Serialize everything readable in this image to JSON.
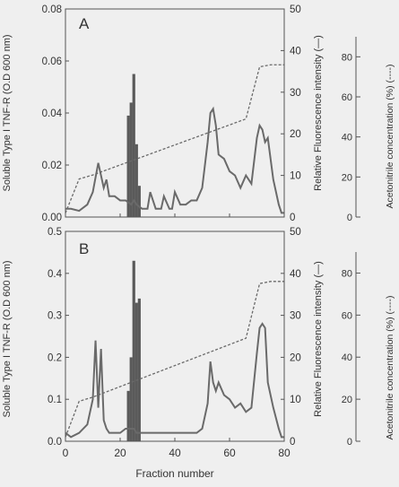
{
  "chart_data": [
    {
      "panel_label": "A",
      "type": "bar+line",
      "x_range": [
        0,
        80
      ],
      "xticks": [
        0,
        20,
        40,
        60,
        80
      ],
      "y_left": {
        "label": "Soluble Type I TNF-R (O.D 600 nm)",
        "range": [
          0,
          0.08
        ],
        "ticks": [
          "0.00",
          "0.02",
          "0.04",
          "0.06",
          "0.08"
        ]
      },
      "y_right1": {
        "label": "Relative Fluorescence intensity (—)",
        "range": [
          0,
          50
        ],
        "ticks": [
          "0",
          "10",
          "20",
          "30",
          "40",
          "50"
        ]
      },
      "y_right2": {
        "label": "Acetonitrile concentration (%) (----)",
        "range": [
          0,
          90
        ],
        "ticks": [
          "0",
          "20",
          "40",
          "60",
          "80"
        ]
      },
      "bars": {
        "x": [
          23,
          24,
          25,
          26,
          27
        ],
        "values": [
          0.039,
          0.044,
          0.055,
          0.028,
          0.012
        ]
      },
      "fluorescence": {
        "x": [
          0,
          2,
          5,
          8,
          10,
          12,
          13,
          14,
          15,
          16,
          18,
          20,
          22,
          24,
          25,
          26,
          28,
          30,
          31,
          32,
          33,
          35,
          36,
          38,
          39,
          40,
          42,
          44,
          46,
          48,
          50,
          52,
          53,
          54,
          55,
          56,
          58,
          60,
          62,
          64,
          66,
          68,
          70,
          71,
          72,
          73,
          74,
          76,
          78,
          79,
          80
        ],
        "values": [
          2,
          2,
          1.5,
          3,
          6,
          13,
          10,
          7,
          9,
          5,
          5,
          4,
          4,
          3,
          4,
          3,
          2,
          2,
          6,
          4,
          2,
          2,
          5,
          2,
          2,
          6,
          3,
          3,
          4,
          4,
          7,
          18,
          25,
          26,
          22,
          15,
          14,
          11,
          10,
          7,
          10,
          8,
          19,
          22,
          21,
          18,
          19,
          9,
          3,
          1,
          1
        ]
      },
      "acetonitrile": {
        "x": [
          0,
          5,
          10,
          66,
          71,
          75,
          80
        ],
        "values": [
          2,
          19,
          21,
          49,
          75,
          76,
          76
        ]
      }
    },
    {
      "panel_label": "B",
      "type": "bar+line",
      "x_range": [
        0,
        80
      ],
      "xticks": [
        0,
        20,
        40,
        60,
        80
      ],
      "xlabel": "Fraction number",
      "y_left": {
        "label": "Soluble Type I TNF-R (O.D 600 nm)",
        "range": [
          0,
          0.5
        ],
        "ticks": [
          "0.0",
          "0.1",
          "0.2",
          "0.3",
          "0.4",
          "0.5"
        ]
      },
      "y_right1": {
        "label": "Relative Fluorescence intensity (—)",
        "range": [
          0,
          50
        ],
        "ticks": [
          "0",
          "10",
          "20",
          "30",
          "40",
          "50"
        ]
      },
      "y_right2": {
        "label": "Acetonitrile concentration (%) (----)",
        "range": [
          0,
          90
        ],
        "ticks": [
          "0",
          "20",
          "40",
          "60",
          "80"
        ]
      },
      "bars": {
        "x": [
          23,
          24,
          25,
          26,
          27
        ],
        "values": [
          0.12,
          0.2,
          0.43,
          0.33,
          0.34
        ]
      },
      "fluorescence": {
        "x": [
          0,
          2,
          5,
          8,
          10,
          11,
          12,
          13,
          14,
          15,
          16,
          18,
          20,
          22,
          24,
          25,
          26,
          28,
          30,
          32,
          34,
          36,
          38,
          40,
          42,
          44,
          46,
          48,
          50,
          52,
          53,
          54,
          55,
          56,
          58,
          60,
          62,
          64,
          66,
          68,
          70,
          71,
          72,
          73,
          74,
          76,
          78,
          79,
          80
        ],
        "values": [
          2,
          1,
          2,
          4,
          10,
          24,
          8,
          22,
          5,
          3,
          2,
          2,
          2,
          3,
          3,
          3,
          2,
          2,
          2,
          2,
          2,
          2,
          2,
          2,
          2,
          2,
          2,
          2,
          3,
          9,
          19,
          14,
          12,
          14,
          11,
          10,
          8,
          9,
          7,
          8,
          21,
          27,
          28,
          27,
          14,
          8,
          3,
          1,
          1
        ]
      },
      "acetonitrile": {
        "x": [
          0,
          5,
          10,
          66,
          71,
          75,
          80
        ],
        "values": [
          2,
          19,
          21,
          49,
          75,
          76,
          76
        ]
      }
    }
  ]
}
